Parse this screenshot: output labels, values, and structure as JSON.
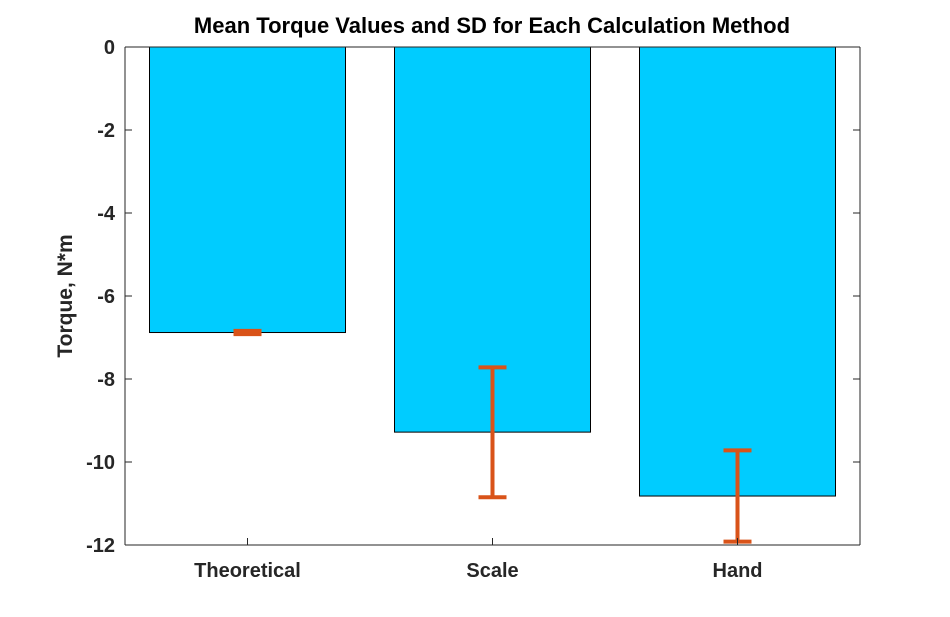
{
  "chart_data": {
    "type": "bar",
    "title": "Mean Torque Values and SD for Each Calculation Method",
    "xlabel": "",
    "ylabel": "Torque, N*m",
    "categories": [
      "Theoretical",
      "Scale",
      "Hand"
    ],
    "values": [
      -6.88,
      -9.28,
      -10.82
    ],
    "error_bars": [
      {
        "low": -6.92,
        "high": -6.84
      },
      {
        "low": -10.85,
        "high": -7.72
      },
      {
        "low": -11.92,
        "high": -9.72
      }
    ],
    "ylim": [
      -12,
      0
    ],
    "yticks": [
      "0",
      "-2",
      "-4",
      "-6",
      "-8",
      "-10",
      "-12"
    ],
    "ytick_values": [
      0,
      -2,
      -4,
      -6,
      -8,
      -10,
      -12
    ],
    "grid": false,
    "colors": {
      "bar": "#00CCFF",
      "bar_edge": "#000000",
      "error": "#D95319",
      "axis": "#262626"
    }
  }
}
